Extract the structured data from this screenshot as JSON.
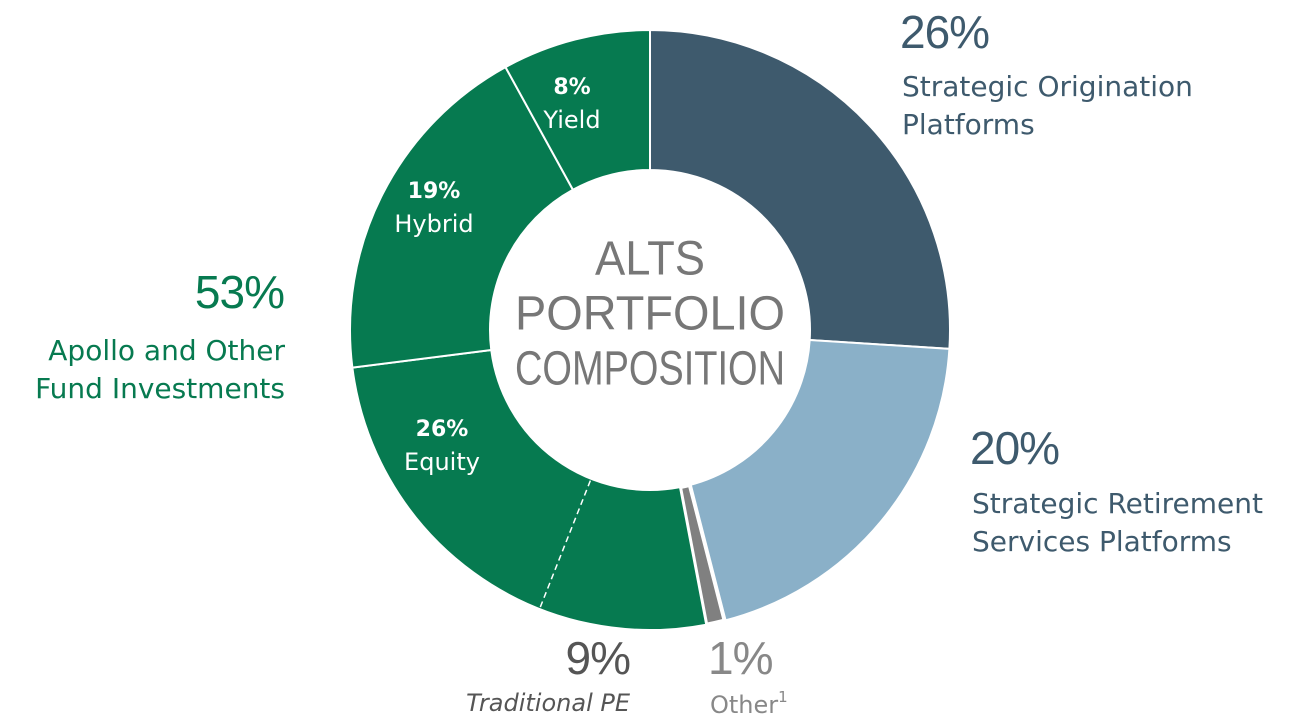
{
  "chart_data": {
    "type": "donut",
    "center_text": [
      "ALTS",
      "PORTFOLIO",
      "COMPOSITION"
    ],
    "categories": [
      "Strategic Origination Platforms",
      "Strategic Retirement Services Platforms",
      "Other",
      "Equity",
      "Hybrid",
      "Yield"
    ],
    "values": [
      26,
      20,
      1,
      26,
      19,
      8
    ],
    "value_labels": [
      "26%",
      "20%",
      "1%",
      "26%",
      "19%",
      "8%"
    ],
    "colors": [
      "#3e5a6d",
      "#8ab0c8",
      "#808080",
      "#067a50",
      "#067a50",
      "#067a50"
    ],
    "other_footnote": "1",
    "group": {
      "name": "Apollo and Other Fund Investments",
      "value": 53,
      "value_label": "53%"
    },
    "sub_segment": {
      "name": "Traditional PE",
      "value": 9,
      "value_label": "9%"
    }
  }
}
